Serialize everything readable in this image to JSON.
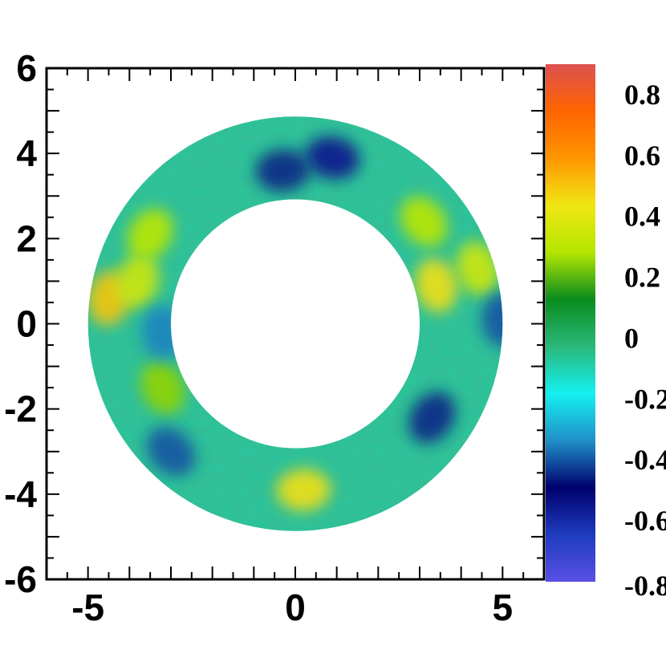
{
  "chart_data": {
    "type": "heatmap",
    "title": "",
    "xlabel": "",
    "ylabel": "",
    "xlim": [
      -6,
      6
    ],
    "ylim": [
      -6,
      6
    ],
    "x_ticks": [
      -5,
      0,
      5
    ],
    "y_ticks": [
      6,
      4,
      2,
      0,
      -2,
      -4,
      -6
    ],
    "x_tick_labels": [
      "-5",
      "0",
      "5"
    ],
    "y_tick_labels": [
      "6",
      "4",
      "2",
      "0",
      "-2",
      "-4",
      "-6"
    ],
    "annulus": {
      "inner_radius": 3,
      "outer_radius": 5,
      "center": [
        0,
        0
      ]
    },
    "colorbar": {
      "min": -0.8,
      "max": 0.9,
      "ticks": [
        0.8,
        0.6,
        0.4,
        0.2,
        0,
        -0.2,
        -0.4,
        -0.6,
        -0.8
      ],
      "tick_labels": [
        "0.8",
        "0.6",
        "0.4",
        "0.2",
        "0",
        "-0.2",
        "-0.4",
        "-0.6",
        "-0.8"
      ],
      "colors": [
        "#5a50e6",
        "#1e3cbe",
        "#00006e",
        "#2090c8",
        "#14f0f0",
        "#2ab87a",
        "#0a8c1e",
        "#b4e600",
        "#f0e614",
        "#ff9600",
        "#ff6400",
        "#dc5050"
      ]
    },
    "features": [
      {
        "x": 4.4,
        "y": 1.3,
        "value": 0.35
      },
      {
        "x": 3.4,
        "y": 0.9,
        "value": 0.45
      },
      {
        "x": 3.1,
        "y": 2.4,
        "value": 0.3
      },
      {
        "x": -4.5,
        "y": 0.6,
        "value": 0.5
      },
      {
        "x": -3.8,
        "y": 1.0,
        "value": 0.35
      },
      {
        "x": -3.5,
        "y": 2.1,
        "value": 0.3
      },
      {
        "x": 0.2,
        "y": -3.9,
        "value": 0.45
      },
      {
        "x": -3.2,
        "y": -1.5,
        "value": 0.25
      },
      {
        "x": 0.9,
        "y": 3.9,
        "value": -0.55
      },
      {
        "x": -0.3,
        "y": 3.6,
        "value": -0.45
      },
      {
        "x": 3.3,
        "y": -2.2,
        "value": -0.45
      },
      {
        "x": -3.0,
        "y": -3.0,
        "value": -0.4
      },
      {
        "x": 5.0,
        "y": 0.1,
        "value": -0.4
      },
      {
        "x": -3.2,
        "y": -0.2,
        "value": -0.35
      }
    ]
  }
}
